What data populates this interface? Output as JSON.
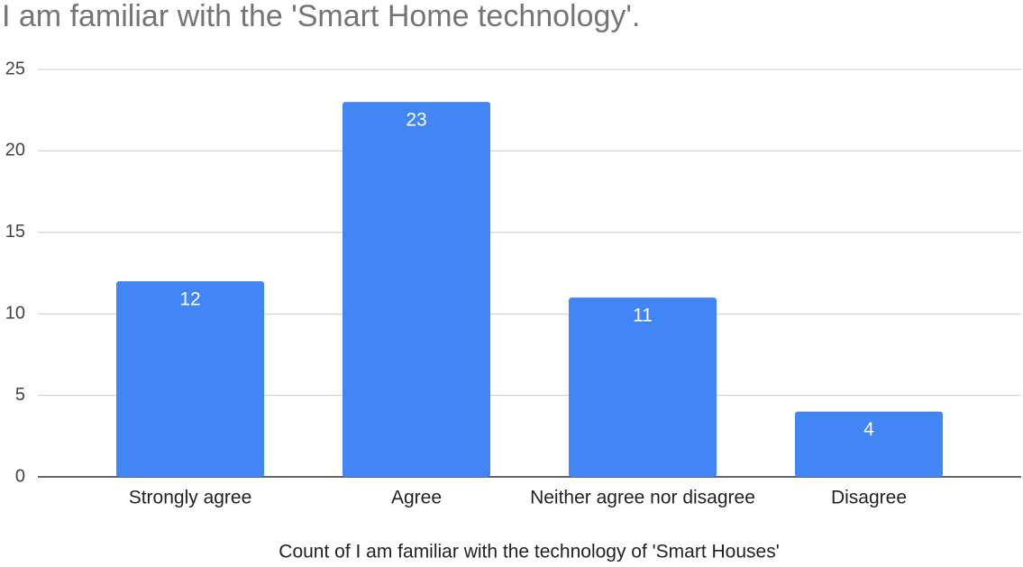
{
  "chart_data": {
    "type": "bar",
    "title": "I am familiar with the 'Smart Home technology'.",
    "x_label": "Count of I am familiar with the technology of 'Smart Houses'",
    "categories": [
      "Strongly agree",
      "Agree",
      "Neither agree nor disagree",
      "Disagree"
    ],
    "values": [
      12,
      23,
      11,
      4
    ],
    "color": "#4285f4",
    "ylim": [
      0,
      25
    ],
    "yticks": [
      0,
      5,
      10,
      15,
      20,
      25
    ],
    "grid": true,
    "data_labels": true
  }
}
